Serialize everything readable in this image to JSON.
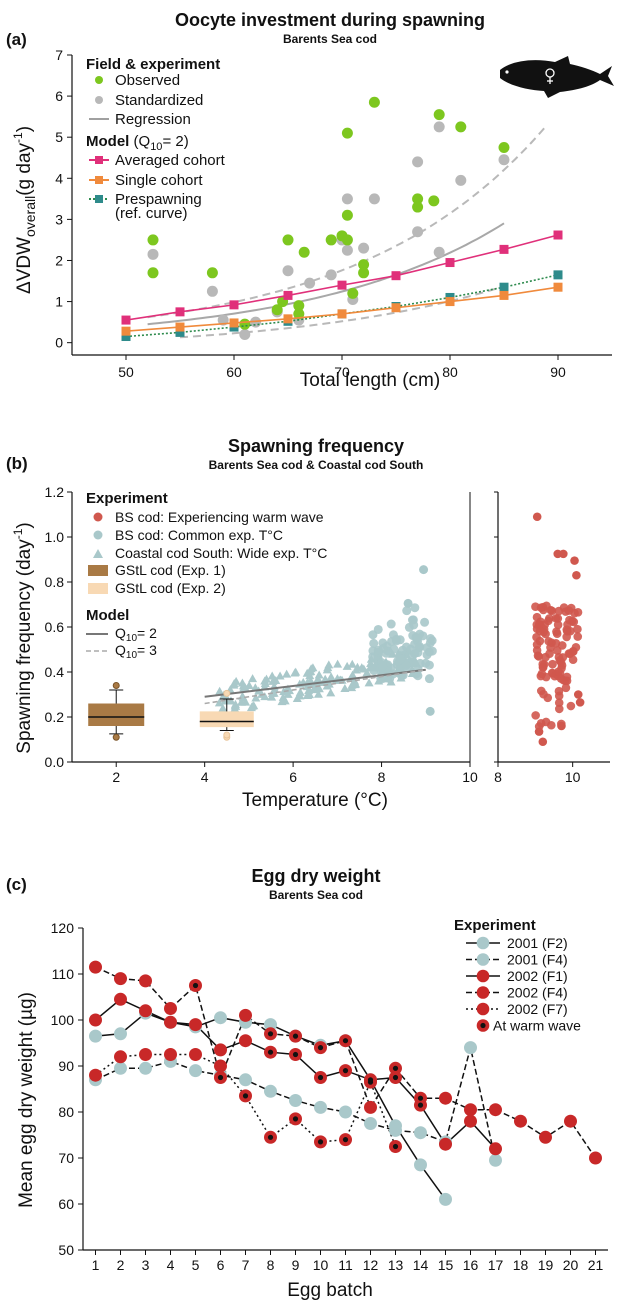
{
  "page_title": "",
  "chart_data": [
    {
      "panel_label": "(a)",
      "type": "scatter",
      "title": "Oocyte investment during spawning",
      "subtitle": "Barents Sea cod",
      "xlabel": "Total length (cm)",
      "ylabel_main": "ΔVDW",
      "ylabel_sub": "overall",
      "ylabel_unit": "(g day",
      "ylabel_sup": "-1",
      "ylabel_close": ")",
      "xlim": [
        45,
        95
      ],
      "ylim": [
        -0.3,
        7
      ],
      "xticks": [
        "50",
        "60",
        "70",
        "80",
        "90"
      ],
      "yticks": [
        "0",
        "1",
        "2",
        "3",
        "4",
        "5",
        "6",
        "7"
      ],
      "legend": {
        "header1": "Field & experiment",
        "observed": "Observed",
        "standardized": "Standardized",
        "regression": "Regression",
        "header2": "Model",
        "header2_suffix": "(Q",
        "header2_sub": "10",
        "header2_end": "= 2)",
        "averaged": "Averaged cohort",
        "single": "Single cohort",
        "prespawning1": "Prespawning",
        "prespawning2": "(ref. curve)"
      },
      "colors": {
        "observed": "#7dc71f",
        "standardized": "#b8b8b8",
        "regression": "#a0a0a0",
        "averaged": "#e0307a",
        "single": "#f08a3c",
        "prespawning": "#2e8b8b"
      },
      "observed": [
        [
          52.5,
          1.7
        ],
        [
          52.5,
          2.5
        ],
        [
          58,
          1.7
        ],
        [
          61,
          0.45
        ],
        [
          64,
          0.8
        ],
        [
          64.5,
          1.0
        ],
        [
          65,
          2.5
        ],
        [
          66,
          0.9
        ],
        [
          66.5,
          2.2
        ],
        [
          66,
          0.7
        ],
        [
          69,
          2.5
        ],
        [
          70,
          2.6
        ],
        [
          70.5,
          2.5
        ],
        [
          70.5,
          3.1
        ],
        [
          70.5,
          5.1
        ],
        [
          71,
          1.2
        ],
        [
          72,
          1.9
        ],
        [
          72,
          1.7
        ],
        [
          73,
          5.85
        ],
        [
          77,
          3.5
        ],
        [
          77,
          3.3
        ],
        [
          78.5,
          3.45
        ],
        [
          79,
          5.55
        ],
        [
          81,
          5.25
        ],
        [
          85,
          4.75
        ]
      ],
      "standardized": [
        [
          52.5,
          2.15
        ],
        [
          58,
          1.25
        ],
        [
          59,
          0.55
        ],
        [
          61,
          0.2
        ],
        [
          62,
          0.5
        ],
        [
          64,
          0.75
        ],
        [
          65,
          1.75
        ],
        [
          66,
          0.55
        ],
        [
          67,
          1.45
        ],
        [
          69,
          1.65
        ],
        [
          70,
          2.5
        ],
        [
          70.5,
          2.25
        ],
        [
          70.5,
          3.5
        ],
        [
          71,
          1.05
        ],
        [
          72,
          2.3
        ],
        [
          73,
          3.5
        ],
        [
          77,
          4.4
        ],
        [
          77,
          2.7
        ],
        [
          79,
          2.2
        ],
        [
          79,
          5.25
        ],
        [
          81,
          3.95
        ],
        [
          85,
          4.45
        ]
      ],
      "averaged_cohort": {
        "x": [
          50,
          55,
          60,
          65,
          70,
          75,
          80,
          85,
          90
        ],
        "y": [
          0.55,
          0.75,
          0.92,
          1.15,
          1.4,
          1.63,
          1.95,
          2.27,
          2.62
        ]
      },
      "single_cohort": {
        "x": [
          50,
          55,
          60,
          65,
          70,
          75,
          80,
          85,
          90
        ],
        "y": [
          0.28,
          0.38,
          0.48,
          0.58,
          0.7,
          0.85,
          1.0,
          1.15,
          1.35
        ]
      },
      "prespawning": {
        "x": [
          50,
          55,
          60,
          65,
          70,
          75,
          80,
          85,
          90
        ],
        "y": [
          0.15,
          0.25,
          0.38,
          0.52,
          0.7,
          0.88,
          1.1,
          1.35,
          1.65
        ]
      }
    },
    {
      "panel_label": "(b)",
      "type": "scatter",
      "title": "Spawning frequency",
      "subtitle": "Barents Sea cod & Coastal cod South",
      "xlabel": "Temperature (°C)",
      "ylabel_main": "Spawning frequency (day",
      "ylabel_sup": "-1",
      "ylabel_close": ")",
      "xlim": [
        1,
        10
      ],
      "ylim": [
        0,
        1.2
      ],
      "right_xlim": [
        8,
        11
      ],
      "xticks": [
        "2",
        "4",
        "6",
        "8",
        "10"
      ],
      "right_xticks": [
        "8",
        "10"
      ],
      "yticks": [
        "0.0",
        "0.2",
        "0.4",
        "0.6",
        "0.8",
        "1.0",
        "1.2"
      ],
      "legend": {
        "header1": "Experiment",
        "warm": "BS cod: Experiencing warm wave",
        "common": "BS cod: Common exp. T°C",
        "coastal": "Coastal cod South: Wide exp. T°C",
        "gstl1": "GStL cod (Exp. 1)",
        "gstl2": "GStL cod (Exp. 2)",
        "header2": "Model",
        "q2_prefix": "Q",
        "q2_sub": "10",
        "q2_end": "= 2",
        "q3_prefix": "Q",
        "q3_sub": "10",
        "q3_end": "= 3"
      },
      "colors": {
        "warm": "#d0584e",
        "common": "#a9c8ca",
        "coastal": "#a9c8ca",
        "gstl1": "#a97a45",
        "gstl2": "#f8d9b4"
      },
      "boxes": [
        {
          "name": "GStL cod (Exp. 1)",
          "x": 2,
          "min": 0.125,
          "q1": 0.16,
          "median": 0.2,
          "q3": 0.26,
          "max": 0.32,
          "outliers": [
            0.11,
            0.34
          ]
        },
        {
          "name": "GStL cod (Exp. 2)",
          "x": 4.5,
          "min": 0.14,
          "q1": 0.155,
          "median": 0.18,
          "q3": 0.225,
          "max": 0.28,
          "outliers": [
            0.11,
            0.12,
            0.305
          ]
        }
      ],
      "model_q2": {
        "x": [
          4,
          9
        ],
        "y": [
          0.29,
          0.41
        ]
      },
      "model_q3": {
        "x": [
          4,
          9
        ],
        "y": [
          0.26,
          0.41
        ]
      }
    },
    {
      "panel_label": "(c)",
      "type": "line",
      "title": "Egg dry weight",
      "subtitle": "Barents Sea cod",
      "xlabel": "Egg batch",
      "ylabel": "Mean egg dry weight (µg)",
      "xlim": [
        0.5,
        21.5
      ],
      "ylim": [
        50,
        120
      ],
      "xticks": [
        "1",
        "2",
        "3",
        "4",
        "5",
        "6",
        "7",
        "8",
        "9",
        "10",
        "11",
        "12",
        "13",
        "14",
        "15",
        "16",
        "17",
        "18",
        "19",
        "20",
        "21"
      ],
      "yticks": [
        "50",
        "60",
        "70",
        "80",
        "90",
        "100",
        "110",
        "120"
      ],
      "legend_header": "Experiment",
      "series": [
        {
          "name": "2001 (F2)",
          "dash": "",
          "color": "#a9c8ca",
          "x": [
            1,
            2,
            3,
            4,
            5,
            6,
            7,
            8,
            9,
            10,
            11,
            12,
            13,
            14,
            15
          ],
          "y": [
            96.5,
            97,
            101.5,
            99.5,
            98.5,
            100.5,
            99.5,
            99,
            96.5,
            94.5,
            95.5,
            87,
            77,
            68.5,
            61
          ]
        },
        {
          "name": "2001 (F4)",
          "dash": "6,3",
          "color": "#a9c8ca",
          "x": [
            1,
            2,
            3,
            4,
            5,
            6,
            7,
            8,
            9,
            10,
            11,
            12,
            13,
            14,
            15,
            16,
            17
          ],
          "y": [
            87,
            89.5,
            89.5,
            91,
            89,
            88,
            87,
            84.5,
            82.5,
            81,
            80,
            77.5,
            76,
            75.5,
            73.5,
            94,
            69.5
          ]
        },
        {
          "name": "2002 (F1)",
          "dash": "",
          "color": "#c82828",
          "x": [
            1,
            2,
            3,
            4,
            5,
            6,
            7,
            8,
            9,
            10,
            11,
            12,
            13,
            14,
            15,
            16,
            17
          ],
          "y": [
            100,
            104.5,
            102,
            99.5,
            99,
            93.5,
            95.5,
            93,
            92.5,
            87.5,
            89,
            87,
            87.5,
            81.5,
            73,
            78,
            72
          ]
        },
        {
          "name": "2002 (F4)",
          "dash": "6,3",
          "color": "#c82828",
          "x": [
            1,
            2,
            3,
            4,
            5,
            6,
            7,
            8,
            9,
            10,
            11,
            12,
            13,
            14,
            15,
            16,
            17,
            18,
            19,
            20,
            21
          ],
          "y": [
            111.5,
            109,
            108.5,
            102.5,
            107.5,
            87.5,
            101,
            97,
            96.5,
            94,
            95.5,
            81,
            89.5,
            83,
            83,
            80.5,
            80.5,
            78,
            74.5,
            78,
            70
          ]
        },
        {
          "name": "2002 (F7)",
          "dash": "2,3",
          "color": "#c82828",
          "x": [
            1,
            2,
            3,
            4,
            5,
            6,
            7,
            8,
            9,
            10,
            11,
            12,
            13
          ],
          "y": [
            88,
            92,
            92.5,
            92.5,
            92.5,
            90,
            83.5,
            74.5,
            78.5,
            73.5,
            74,
            86.5,
            72.5
          ]
        }
      ],
      "at_warm_wave_label": "At warm wave",
      "warm_wave_points": [
        [
          5,
          107.5
        ],
        [
          6,
          87.5
        ],
        [
          7,
          83.5
        ],
        [
          8,
          74.5
        ],
        [
          8,
          93
        ],
        [
          8,
          97
        ],
        [
          9,
          78.5
        ],
        [
          9,
          92.5
        ],
        [
          9,
          96.5
        ],
        [
          10,
          73.5
        ],
        [
          10,
          87.5
        ],
        [
          10,
          94
        ],
        [
          11,
          74
        ],
        [
          11,
          89
        ],
        [
          11,
          95.5
        ],
        [
          12,
          86.5
        ],
        [
          12,
          87
        ],
        [
          13,
          72.5
        ],
        [
          13,
          87.5
        ],
        [
          13,
          89.5
        ],
        [
          14,
          81.5
        ],
        [
          14,
          83
        ]
      ]
    }
  ]
}
